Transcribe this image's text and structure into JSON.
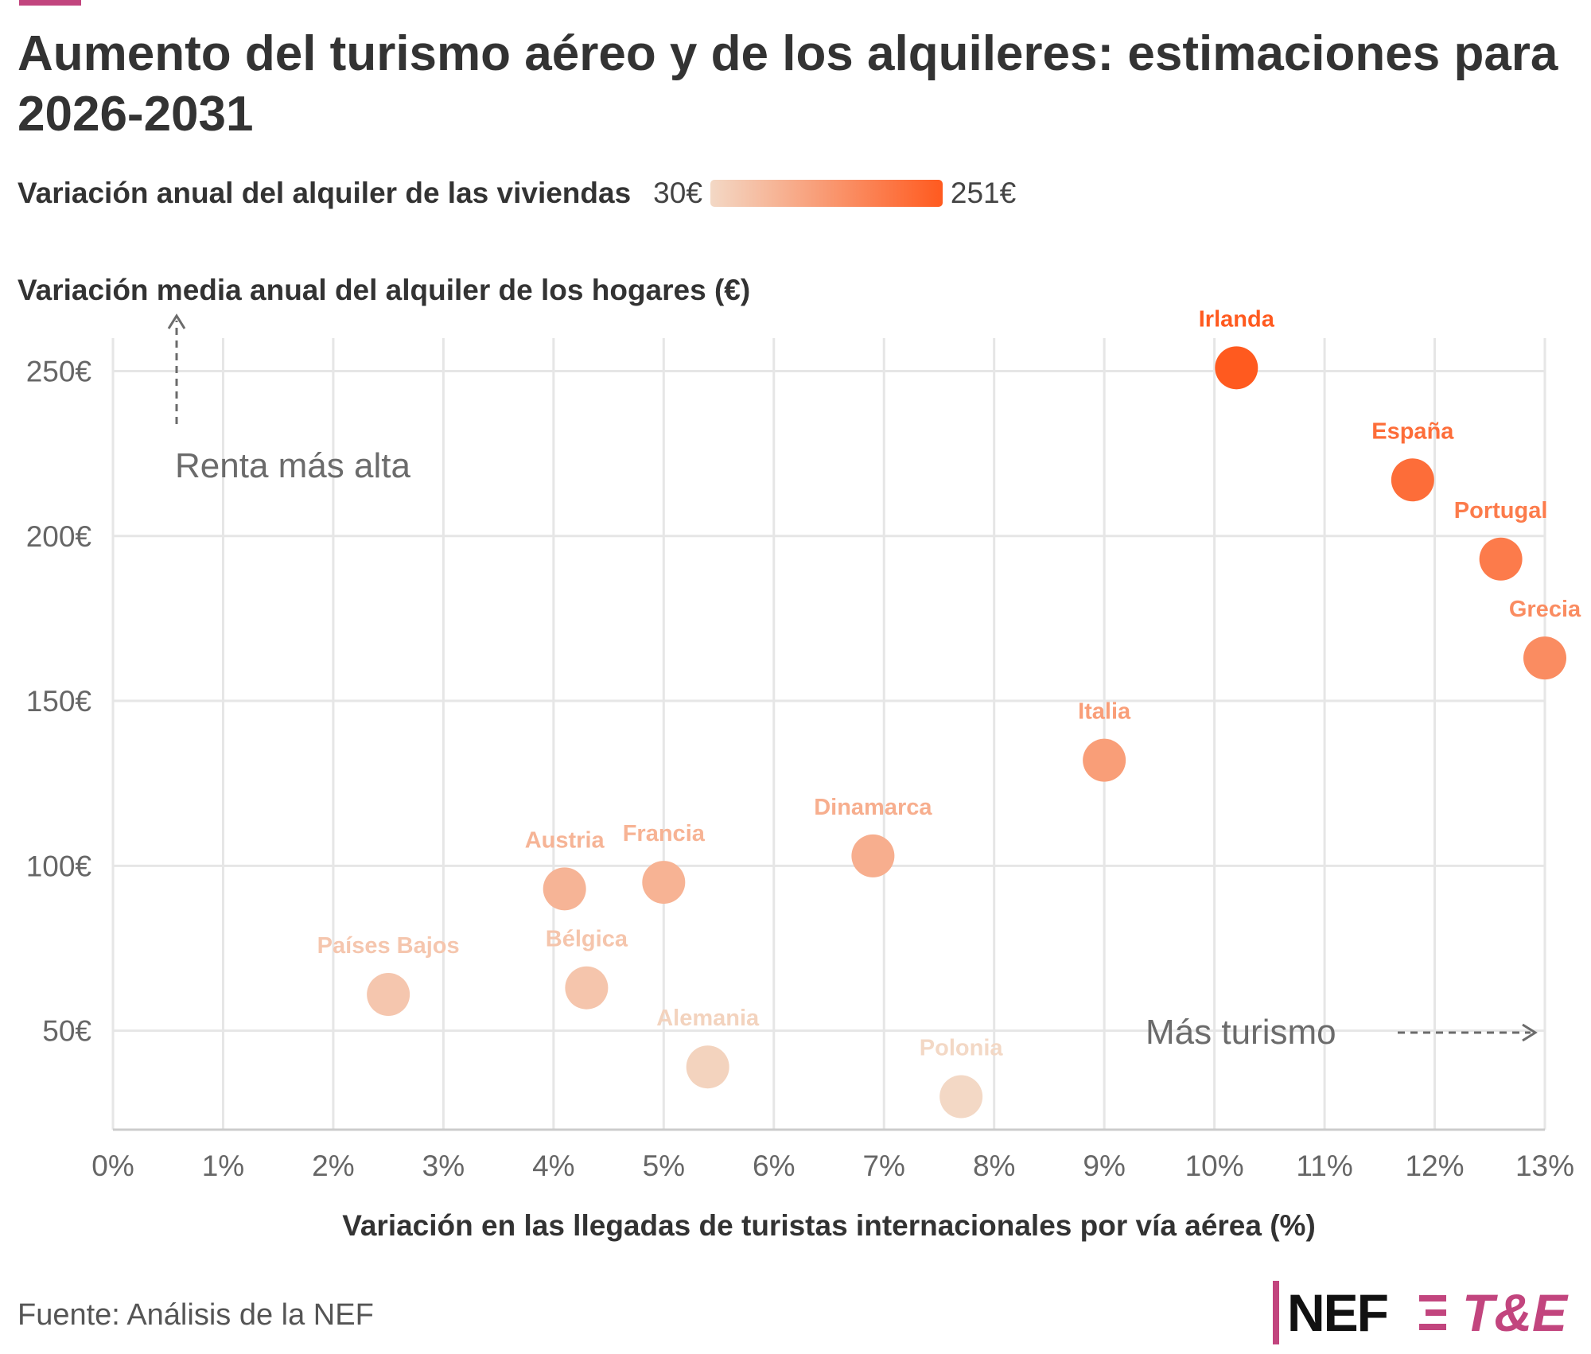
{
  "colors": {
    "accent": "#c2457e",
    "scale_low": "#f3d8c5",
    "scale_high": "#ff5a1f",
    "grid": "#e6e6e6",
    "axis_text": "#666666",
    "annotation": "#6b6b6b"
  },
  "title": "Aumento del turismo aéreo y de los alquileres: estimaciones para 2026-2031",
  "legend": {
    "title": "Variación anual del alquiler de las viviendas",
    "min_label": "30€",
    "max_label": "251€"
  },
  "source": "Fuente: Análisis de la NEF",
  "logos": {
    "nef": "NEF",
    "te": "T&E"
  },
  "chart_data": {
    "type": "scatter",
    "xlabel": "Variación en las llegadas de turistas internacionales por vía aérea (%)",
    "ylabel": "Variación media anual del alquiler de los hogares (€)",
    "xlim": [
      0,
      13
    ],
    "ylim": [
      20,
      260
    ],
    "x_ticks": [
      0,
      1,
      2,
      3,
      4,
      5,
      6,
      7,
      8,
      9,
      10,
      11,
      12,
      13
    ],
    "x_tick_labels": [
      "0%",
      "1%",
      "2%",
      "3%",
      "4%",
      "5%",
      "6%",
      "7%",
      "8%",
      "9%",
      "10%",
      "11%",
      "12%",
      "13%"
    ],
    "y_ticks": [
      50,
      100,
      150,
      200,
      250
    ],
    "y_tick_labels": [
      "50€",
      "100€",
      "150€",
      "200€",
      "250€"
    ],
    "grid": true,
    "color_range": [
      30,
      251
    ],
    "points": [
      {
        "label": "Irlanda",
        "x": 10.2,
        "y": 251
      },
      {
        "label": "España",
        "x": 11.8,
        "y": 217
      },
      {
        "label": "Portugal",
        "x": 12.6,
        "y": 193
      },
      {
        "label": "Grecia",
        "x": 13.0,
        "y": 163
      },
      {
        "label": "Italia",
        "x": 9.0,
        "y": 132
      },
      {
        "label": "Dinamarca",
        "x": 6.9,
        "y": 103
      },
      {
        "label": "Francia",
        "x": 5.0,
        "y": 95
      },
      {
        "label": "Austria",
        "x": 4.1,
        "y": 93
      },
      {
        "label": "Países Bajos",
        "x": 2.5,
        "y": 61
      },
      {
        "label": "Bélgica",
        "x": 4.3,
        "y": 63
      },
      {
        "label": "Alemania",
        "x": 5.4,
        "y": 39
      },
      {
        "label": "Polonia",
        "x": 7.7,
        "y": 30
      }
    ],
    "annotations": {
      "y_arrow_text": "Renta más alta",
      "x_arrow_text": "Más turismo"
    }
  }
}
